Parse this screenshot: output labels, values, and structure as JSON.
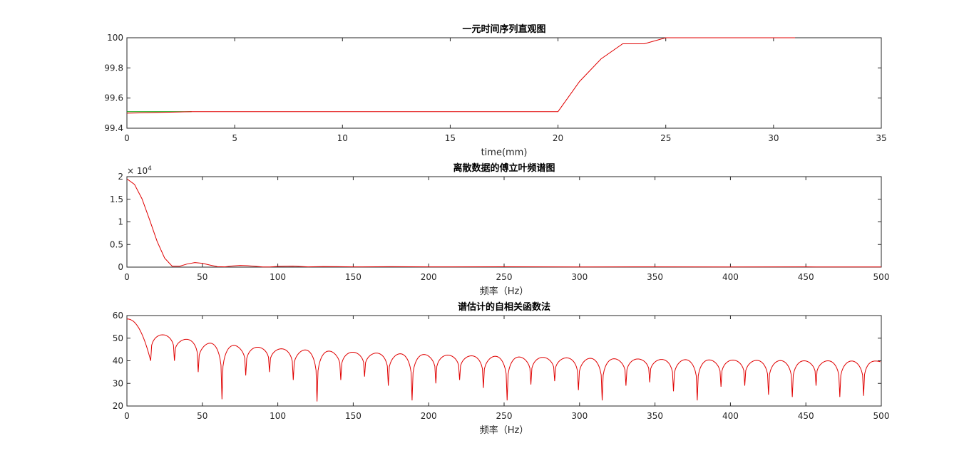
{
  "chart_data": [
    {
      "type": "line",
      "title": "一元时间序列直观图",
      "xlabel": "time(mm)",
      "ylabel": "",
      "xlim": [
        0,
        35
      ],
      "ylim": [
        99.4,
        100
      ],
      "x_ticks": [
        0,
        5,
        10,
        15,
        20,
        25,
        30,
        35
      ],
      "y_ticks": [
        99.4,
        99.6,
        99.8,
        100
      ],
      "x_tick_labels": [
        "0",
        "5",
        "10",
        "15",
        "20",
        "25",
        "30",
        "35"
      ],
      "y_tick_labels": [
        "99.4",
        "99.6",
        "99.8",
        "100"
      ],
      "grid": false,
      "series": [
        {
          "color": "#00a000",
          "x": [
            0,
            1,
            2,
            3
          ],
          "y": [
            99.51,
            99.51,
            99.51,
            99.51
          ]
        },
        {
          "color": "#e00000",
          "x": [
            0,
            1,
            2,
            3,
            4,
            5,
            6,
            7,
            8,
            9,
            10,
            11,
            12,
            13,
            14,
            15,
            16,
            17,
            18,
            19,
            20,
            21,
            22,
            23,
            24,
            25,
            26,
            27,
            28,
            29,
            30,
            31
          ],
          "y": [
            99.5,
            99.503,
            99.506,
            99.51,
            99.51,
            99.51,
            99.51,
            99.51,
            99.51,
            99.51,
            99.51,
            99.51,
            99.51,
            99.51,
            99.51,
            99.51,
            99.51,
            99.51,
            99.51,
            99.51,
            99.51,
            99.71,
            99.86,
            99.96,
            99.96,
            100.0,
            100.0,
            100.0,
            100.0,
            100.0,
            100.0,
            100.0
          ]
        }
      ]
    },
    {
      "type": "line",
      "title": "离散数据的傅立叶频谱图",
      "xlabel": "频率（Hz）",
      "ylabel": "",
      "xlim": [
        0,
        500
      ],
      "ylim": [
        0,
        20000
      ],
      "x_ticks": [
        0,
        50,
        100,
        150,
        200,
        250,
        300,
        350,
        400,
        450,
        500
      ],
      "y_ticks": [
        0,
        5000,
        10000,
        15000,
        20000
      ],
      "x_tick_labels": [
        "0",
        "50",
        "100",
        "150",
        "200",
        "250",
        "300",
        "350",
        "400",
        "450",
        "500"
      ],
      "y_tick_labels": [
        "0",
        "0.5",
        "1",
        "1.5",
        "2"
      ],
      "y_exponent_base": "× 10",
      "y_exponent_power": "4",
      "grid": false,
      "series": [
        {
          "color": "#e00000",
          "x": [
            0,
            5,
            10,
            15,
            20,
            25,
            30,
            35,
            40,
            45,
            50,
            55,
            60,
            65,
            70,
            75,
            80,
            85,
            90,
            95,
            100,
            110,
            120,
            130,
            140,
            150,
            175,
            200,
            250,
            300,
            350,
            400,
            450,
            500
          ],
          "y": [
            19500,
            18300,
            15100,
            10500,
            5700,
            2000,
            200,
            200,
            700,
            1000,
            850,
            450,
            100,
            60,
            250,
            380,
            320,
            170,
            40,
            40,
            150,
            210,
            60,
            120,
            100,
            60,
            90,
            50,
            70,
            40,
            60,
            40,
            50,
            40
          ]
        }
      ]
    },
    {
      "type": "line",
      "title": "谱估计的自相关函数法",
      "xlabel": "频率（Hz）",
      "ylabel": "",
      "xlim": [
        0,
        500
      ],
      "ylim": [
        20,
        60
      ],
      "x_ticks": [
        0,
        50,
        100,
        150,
        200,
        250,
        300,
        350,
        400,
        450,
        500
      ],
      "y_ticks": [
        20,
        30,
        40,
        50,
        60
      ],
      "x_tick_labels": [
        "0",
        "50",
        "100",
        "150",
        "200",
        "250",
        "300",
        "350",
        "400",
        "450",
        "500"
      ],
      "y_tick_labels": [
        "20",
        "30",
        "40",
        "50",
        "60"
      ],
      "grid": false,
      "series": [
        {
          "color": "#e00000",
          "null_period_hz": 15.75,
          "peaks": [
            58.5,
            51.5,
            49.5,
            47.8,
            46.8,
            46.0,
            45.3,
            44.8,
            44.3,
            43.8,
            43.4,
            43.1,
            42.8,
            42.5,
            42.2,
            42.0,
            41.7,
            41.5,
            41.3,
            41.1,
            40.9,
            40.8,
            40.6,
            40.5,
            40.4,
            40.3,
            40.2,
            40.1,
            40.0,
            40.0,
            39.9,
            39.9
          ],
          "nulls": [
            40,
            40,
            35,
            23,
            33.5,
            35,
            31.5,
            22,
            31.5,
            33,
            29,
            22.5,
            30,
            31.5,
            28,
            22.5,
            29.5,
            31,
            27,
            22.5,
            29,
            30.5,
            26.5,
            22.5,
            28.5,
            29,
            25,
            24,
            29,
            24,
            24.5
          ]
        }
      ]
    }
  ]
}
